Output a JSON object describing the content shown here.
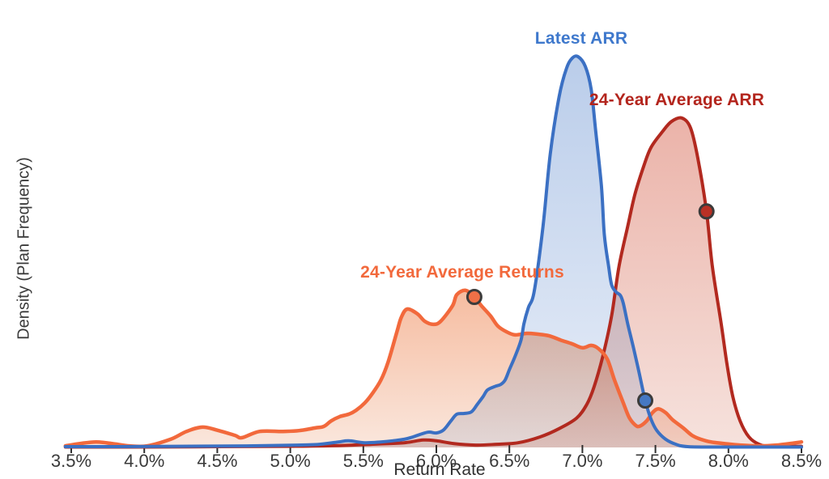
{
  "chart_data": {
    "type": "area",
    "subtype": "kde-density",
    "title": "",
    "xlabel": "Return Rate",
    "ylabel": "Density (Plan Frequency)",
    "xlim": [
      3.5,
      8.5
    ],
    "ylim": [
      0,
      1.08
    ],
    "y_units": "relative density (1.0 = Latest ARR peak)",
    "grid": false,
    "legend": "direct-labels-on-chart",
    "background": "#ffffff",
    "x_tick_values": [
      3.5,
      4.0,
      4.5,
      5.0,
      5.5,
      6.0,
      6.5,
      7.0,
      7.5,
      8.0,
      8.5
    ],
    "x_tick_labels": [
      "3.5%",
      "4.0%",
      "4.5%",
      "5.0%",
      "5.5%",
      "6.0%",
      "6.5%",
      "7.0%",
      "7.5%",
      "8.0%",
      "8.5%"
    ],
    "axis_tick_color": "#2f2f2f",
    "axis_label_color": "#3a3a3a",
    "series": [
      {
        "id": "avg_arr",
        "name": "24-Year Average ARR",
        "color": "#B2291F",
        "label_color": "#B3251D",
        "fill_top": "#EBB3A9",
        "fill_bottom": "#F6E2DD",
        "stroke_width": 4,
        "marker": {
          "x": 7.85,
          "y": 0.604,
          "color": "#B93125"
        },
        "points": [
          [
            3.46,
            0.001
          ],
          [
            4.0,
            0.001
          ],
          [
            4.5,
            0.002
          ],
          [
            5.0,
            0.003
          ],
          [
            5.35,
            0.005
          ],
          [
            5.6,
            0.009
          ],
          [
            5.78,
            0.012
          ],
          [
            5.91,
            0.019
          ],
          [
            6.0,
            0.017
          ],
          [
            6.12,
            0.01
          ],
          [
            6.27,
            0.006
          ],
          [
            6.41,
            0.008
          ],
          [
            6.56,
            0.012
          ],
          [
            6.71,
            0.027
          ],
          [
            6.84,
            0.048
          ],
          [
            6.96,
            0.075
          ],
          [
            7.03,
            0.11
          ],
          [
            7.08,
            0.155
          ],
          [
            7.14,
            0.234
          ],
          [
            7.2,
            0.337
          ],
          [
            7.25,
            0.462
          ],
          [
            7.31,
            0.565
          ],
          [
            7.36,
            0.648
          ],
          [
            7.42,
            0.72
          ],
          [
            7.47,
            0.768
          ],
          [
            7.55,
            0.809
          ],
          [
            7.61,
            0.834
          ],
          [
            7.68,
            0.843
          ],
          [
            7.74,
            0.818
          ],
          [
            7.79,
            0.741
          ],
          [
            7.85,
            0.604
          ],
          [
            7.89,
            0.462
          ],
          [
            7.95,
            0.317
          ],
          [
            7.99,
            0.213
          ],
          [
            8.03,
            0.13
          ],
          [
            8.08,
            0.068
          ],
          [
            8.14,
            0.027
          ],
          [
            8.21,
            0.008
          ],
          [
            8.29,
            0.003
          ],
          [
            8.5,
            0.003
          ]
        ]
      },
      {
        "id": "avg_returns",
        "name": "24-Year Average Returns",
        "color": "#F2693C",
        "label_color": "#F2693C",
        "fill_top": "#F6BCA0",
        "fill_bottom": "#FAE7DD",
        "stroke_width": 4.5,
        "marker": {
          "x": 6.26,
          "y": 0.385,
          "color": "#EE7047"
        },
        "points": [
          [
            3.46,
            0.004
          ],
          [
            3.56,
            0.01
          ],
          [
            3.67,
            0.014
          ],
          [
            3.78,
            0.01
          ],
          [
            3.9,
            0.004
          ],
          [
            4.02,
            0.004
          ],
          [
            4.18,
            0.021
          ],
          [
            4.29,
            0.041
          ],
          [
            4.4,
            0.052
          ],
          [
            4.51,
            0.043
          ],
          [
            4.62,
            0.031
          ],
          [
            4.67,
            0.025
          ],
          [
            4.79,
            0.041
          ],
          [
            4.95,
            0.041
          ],
          [
            5.06,
            0.043
          ],
          [
            5.17,
            0.05
          ],
          [
            5.23,
            0.054
          ],
          [
            5.28,
            0.068
          ],
          [
            5.34,
            0.079
          ],
          [
            5.4,
            0.085
          ],
          [
            5.45,
            0.095
          ],
          [
            5.51,
            0.114
          ],
          [
            5.56,
            0.137
          ],
          [
            5.62,
            0.172
          ],
          [
            5.67,
            0.219
          ],
          [
            5.73,
            0.296
          ],
          [
            5.76,
            0.333
          ],
          [
            5.8,
            0.354
          ],
          [
            5.87,
            0.342
          ],
          [
            5.92,
            0.323
          ],
          [
            5.98,
            0.315
          ],
          [
            6.03,
            0.323
          ],
          [
            6.11,
            0.362
          ],
          [
            6.14,
            0.391
          ],
          [
            6.2,
            0.402
          ],
          [
            6.26,
            0.385
          ],
          [
            6.31,
            0.362
          ],
          [
            6.37,
            0.337
          ],
          [
            6.42,
            0.311
          ],
          [
            6.48,
            0.296
          ],
          [
            6.54,
            0.288
          ],
          [
            6.62,
            0.292
          ],
          [
            6.69,
            0.29
          ],
          [
            6.77,
            0.286
          ],
          [
            6.85,
            0.275
          ],
          [
            6.93,
            0.265
          ],
          [
            7.0,
            0.255
          ],
          [
            7.06,
            0.261
          ],
          [
            7.11,
            0.253
          ],
          [
            7.17,
            0.226
          ],
          [
            7.22,
            0.172
          ],
          [
            7.28,
            0.114
          ],
          [
            7.32,
            0.077
          ],
          [
            7.36,
            0.058
          ],
          [
            7.39,
            0.054
          ],
          [
            7.44,
            0.068
          ],
          [
            7.48,
            0.089
          ],
          [
            7.52,
            0.099
          ],
          [
            7.57,
            0.089
          ],
          [
            7.62,
            0.07
          ],
          [
            7.69,
            0.05
          ],
          [
            7.75,
            0.031
          ],
          [
            7.81,
            0.021
          ],
          [
            7.88,
            0.014
          ],
          [
            7.97,
            0.01
          ],
          [
            8.08,
            0.006
          ],
          [
            8.22,
            0.004
          ],
          [
            8.33,
            0.006
          ],
          [
            8.42,
            0.01
          ],
          [
            8.5,
            0.014
          ]
        ]
      },
      {
        "id": "latest_arr",
        "name": "Latest ARR",
        "color": "#3B70C3",
        "label_color": "#3E78CC",
        "fill_top": "#BACDEA",
        "fill_bottom": "#E8EEF8",
        "stroke_width": 4,
        "marker": {
          "x": 7.43,
          "y": 0.12,
          "color": "#4678C3"
        },
        "points": [
          [
            3.46,
            0.002
          ],
          [
            3.8,
            0.002
          ],
          [
            4.2,
            0.003
          ],
          [
            4.7,
            0.004
          ],
          [
            5.05,
            0.006
          ],
          [
            5.2,
            0.008
          ],
          [
            5.33,
            0.014
          ],
          [
            5.4,
            0.017
          ],
          [
            5.51,
            0.012
          ],
          [
            5.62,
            0.014
          ],
          [
            5.7,
            0.017
          ],
          [
            5.78,
            0.021
          ],
          [
            5.84,
            0.027
          ],
          [
            5.94,
            0.039
          ],
          [
            6.0,
            0.037
          ],
          [
            6.05,
            0.045
          ],
          [
            6.1,
            0.068
          ],
          [
            6.14,
            0.085
          ],
          [
            6.19,
            0.087
          ],
          [
            6.24,
            0.091
          ],
          [
            6.28,
            0.11
          ],
          [
            6.32,
            0.13
          ],
          [
            6.35,
            0.147
          ],
          [
            6.4,
            0.156
          ],
          [
            6.44,
            0.161
          ],
          [
            6.47,
            0.172
          ],
          [
            6.5,
            0.199
          ],
          [
            6.54,
            0.234
          ],
          [
            6.58,
            0.275
          ],
          [
            6.6,
            0.317
          ],
          [
            6.63,
            0.358
          ],
          [
            6.67,
            0.4
          ],
          [
            6.73,
            0.565
          ],
          [
            6.78,
            0.751
          ],
          [
            6.84,
            0.896
          ],
          [
            6.89,
            0.969
          ],
          [
            6.93,
            0.996
          ],
          [
            6.97,
            1.0
          ],
          [
            7.02,
            0.975
          ],
          [
            7.06,
            0.917
          ],
          [
            7.09,
            0.814
          ],
          [
            7.13,
            0.669
          ],
          [
            7.15,
            0.544
          ],
          [
            7.18,
            0.462
          ],
          [
            7.2,
            0.416
          ],
          [
            7.23,
            0.398
          ],
          [
            7.26,
            0.389
          ],
          [
            7.28,
            0.369
          ],
          [
            7.31,
            0.317
          ],
          [
            7.35,
            0.255
          ],
          [
            7.39,
            0.188
          ],
          [
            7.43,
            0.12
          ],
          [
            7.47,
            0.072
          ],
          [
            7.51,
            0.043
          ],
          [
            7.57,
            0.021
          ],
          [
            7.64,
            0.008
          ],
          [
            7.72,
            0.002
          ],
          [
            7.9,
            0.001
          ],
          [
            8.2,
            0.001
          ],
          [
            8.5,
            0.001
          ]
        ]
      }
    ],
    "marker_ring_color": "#3b3b3b"
  }
}
